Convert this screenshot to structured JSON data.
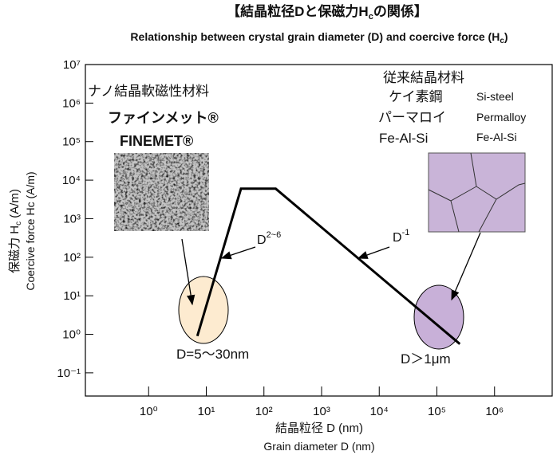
{
  "chart_data": {
    "type": "line",
    "title_parts": [
      "【結晶粒径Dと保磁力H",
      "c",
      "の関係】"
    ],
    "subtitle_parts": [
      "Relationship between crystal grain diameter (D) and coercive force (H",
      "c",
      ")"
    ],
    "x_label": "結晶粒径  D (nm)",
    "x_label_en": "Grain diameter D (nm)",
    "y_label_parts": [
      "保磁力 H",
      "c",
      " (A/m)"
    ],
    "y_label_en": "Coercive force Hc (A/m)",
    "x_log": true,
    "y_log": true,
    "xlim": [
      0.08,
      10000000
    ],
    "ylim": [
      0.025,
      10000000
    ],
    "xticks": [
      {
        "value": 1,
        "label": "10⁰"
      },
      {
        "value": 10,
        "label": "10¹"
      },
      {
        "value": 100,
        "label": "10²"
      },
      {
        "value": 1000,
        "label": "10³"
      },
      {
        "value": 10000,
        "label": "10⁴"
      },
      {
        "value": 100000,
        "label": "10⁵"
      },
      {
        "value": 1000000,
        "label": "10⁶"
      }
    ],
    "yticks": [
      {
        "value": 0.1,
        "label": "10⁻¹"
      },
      {
        "value": 1,
        "label": "10⁰"
      },
      {
        "value": 10,
        "label": "10¹"
      },
      {
        "value": 100,
        "label": "10²"
      },
      {
        "value": 1000,
        "label": "10³"
      },
      {
        "value": 10000,
        "label": "10⁴"
      },
      {
        "value": 100000,
        "label": "10⁵"
      },
      {
        "value": 1000000,
        "label": "10⁶"
      },
      {
        "value": 10000000,
        "label": "10⁷"
      }
    ],
    "series": [
      {
        "color": "#000000",
        "x": [
          7,
          40,
          160,
          250000
        ],
        "values": [
          0.9,
          6000,
          6000,
          0.56
        ]
      }
    ],
    "annotations": {
      "nano_title": "ナノ結晶軟磁性材料",
      "finemet_jp": "ファインメット®",
      "finemet_en": "FINEMET®",
      "conv_title": "従来結晶材料",
      "si_jp": "ケイ素鋼",
      "si_en": "Si-steel",
      "perm_jp": "パーマロイ",
      "perm_en": "Permalloy",
      "feal_jp": "Fe-Al-Si",
      "feal_en": "Fe-Al-Si",
      "slope_nano_base": "D",
      "slope_nano_exp": "2~6",
      "slope_conv_base": "D",
      "slope_conv_exp": "-1",
      "range_nano": "D=5～30nm",
      "range_conv": "D＞1μm"
    }
  }
}
